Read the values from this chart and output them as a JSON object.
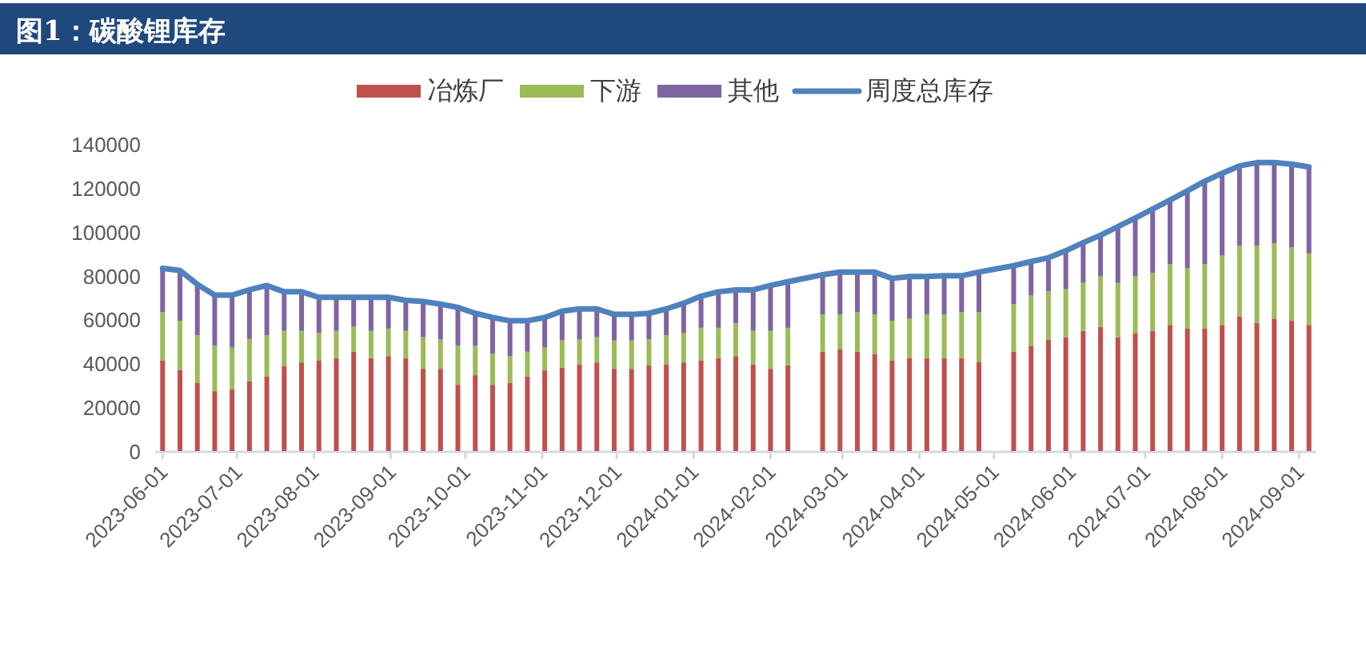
{
  "chart_data": {
    "type": "bar",
    "title": "图1：碳酸锂库存",
    "stacked": true,
    "legend": "top",
    "grid": false,
    "x": [
      "2023-06-01",
      "2023-06-08",
      "2023-06-15",
      "2023-06-22",
      "2023-06-29",
      "2023-07-06",
      "2023-07-13",
      "2023-07-20",
      "2023-07-27",
      "2023-08-03",
      "2023-08-10",
      "2023-08-17",
      "2023-08-24",
      "2023-08-31",
      "2023-09-07",
      "2023-09-14",
      "2023-09-21",
      "2023-09-28",
      "2023-10-05",
      "2023-10-12",
      "2023-10-19",
      "2023-10-26",
      "2023-11-02",
      "2023-11-09",
      "2023-11-16",
      "2023-11-23",
      "2023-11-30",
      "2023-12-07",
      "2023-12-14",
      "2023-12-21",
      "2023-12-28",
      "2024-01-04",
      "2024-01-11",
      "2024-01-18",
      "2024-01-25",
      "2024-02-01",
      "2024-02-08",
      "2024-02-22",
      "2024-02-29",
      "2024-03-07",
      "2024-03-14",
      "2024-03-21",
      "2024-03-28",
      "2024-04-04",
      "2024-04-11",
      "2024-04-18",
      "2024-04-25",
      "2024-05-09",
      "2024-05-16",
      "2024-05-23",
      "2024-05-30",
      "2024-06-06",
      "2024-06-13",
      "2024-06-20",
      "2024-06-27",
      "2024-07-04",
      "2024-07-11",
      "2024-07-18",
      "2024-07-25",
      "2024-08-01",
      "2024-08-08",
      "2024-08-15",
      "2024-08-22",
      "2024-08-29",
      "2024-09-05"
    ],
    "xlim": [
      "2023-05-29",
      "2024-09-08"
    ],
    "xticks": [
      "2023-06-01",
      "2023-07-01",
      "2023-08-01",
      "2023-09-01",
      "2023-10-01",
      "2023-11-01",
      "2023-12-01",
      "2024-01-01",
      "2024-02-01",
      "2024-03-01",
      "2024-04-01",
      "2024-05-01",
      "2024-06-01",
      "2024-07-01",
      "2024-08-01",
      "2024-09-01"
    ],
    "ylim": [
      0,
      140000
    ],
    "yticks": [
      0,
      20000,
      40000,
      60000,
      80000,
      100000,
      120000,
      140000
    ],
    "series": [
      {
        "name": "冶炼厂",
        "color": "#c0504d",
        "values": [
          41400,
          37000,
          31200,
          27300,
          28200,
          31900,
          34100,
          38700,
          40400,
          41400,
          42400,
          45300,
          42400,
          43300,
          42400,
          37500,
          37500,
          30200,
          34600,
          30200,
          31200,
          34100,
          37000,
          38000,
          39400,
          40400,
          37500,
          37500,
          39000,
          39400,
          40400,
          41400,
          42400,
          43300,
          39400,
          37500,
          39000,
          45300,
          46300,
          45300,
          44300,
          41400,
          42400,
          42400,
          42400,
          42400,
          40700,
          45300,
          48000,
          50900,
          51900,
          54800,
          56700,
          51900,
          53800,
          54800,
          57500,
          55800,
          55800,
          57500,
          61400,
          58400,
          60400,
          59400,
          57500
        ]
      },
      {
        "name": "下游",
        "color": "#9bbb59",
        "values": [
          21900,
          22400,
          21600,
          20700,
          19000,
          19200,
          18700,
          16100,
          14400,
          12400,
          12400,
          11400,
          12400,
          12500,
          12400,
          14400,
          13400,
          17800,
          13400,
          14100,
          12100,
          11200,
          10200,
          12400,
          11500,
          11500,
          12900,
          12900,
          11900,
          13400,
          13400,
          14800,
          13800,
          14900,
          15400,
          17300,
          17200,
          17000,
          16000,
          18000,
          18000,
          18000,
          18000,
          19900,
          19900,
          20900,
          22600,
          21700,
          22900,
          21900,
          21900,
          21900,
          22900,
          24800,
          25800,
          26500,
          27700,
          27500,
          29400,
          31600,
          32300,
          35300,
          34300,
          33400,
          32600
        ]
      },
      {
        "name": "其他",
        "color": "#8064a2",
        "values": [
          20000,
          22900,
          23200,
          23100,
          23900,
          22400,
          22700,
          17800,
          17800,
          16300,
          15300,
          13400,
          15300,
          14300,
          13900,
          16300,
          16100,
          17500,
          14800,
          16600,
          16100,
          14100,
          13700,
          13400,
          13900,
          12900,
          11900,
          11900,
          11900,
          12000,
          13600,
          14400,
          16400,
          15300,
          18700,
          20700,
          21000,
          18100,
          19300,
          18300,
          19300,
          19300,
          19200,
          17300,
          17600,
          16600,
          18300,
          17500,
          15500,
          15300,
          17500,
          18300,
          18800,
          25600,
          26600,
          29000,
          29200,
          35300,
          37800,
          37500,
          36300,
          37800,
          36800,
          38000,
          39400
        ]
      },
      {
        "name": "周度总库存",
        "type": "line",
        "color": "#4f81bd",
        "values": [
          83300,
          82300,
          76000,
          71100,
          71100,
          73500,
          75500,
          72600,
          72600,
          70100,
          70100,
          70100,
          70100,
          70100,
          68700,
          68200,
          67000,
          65500,
          62800,
          60900,
          59400,
          59400,
          60900,
          63800,
          64800,
          64800,
          62300,
          62300,
          62800,
          64800,
          67400,
          70600,
          72600,
          73500,
          73500,
          75500,
          77200,
          80400,
          81600,
          81600,
          81600,
          78700,
          79600,
          79600,
          79900,
          79900,
          81600,
          84500,
          86400,
          88100,
          91300,
          95000,
          98400,
          102300,
          106200,
          110300,
          114400,
          118600,
          123000,
          126600,
          130000,
          131500,
          131500,
          130800,
          129500
        ]
      }
    ]
  }
}
